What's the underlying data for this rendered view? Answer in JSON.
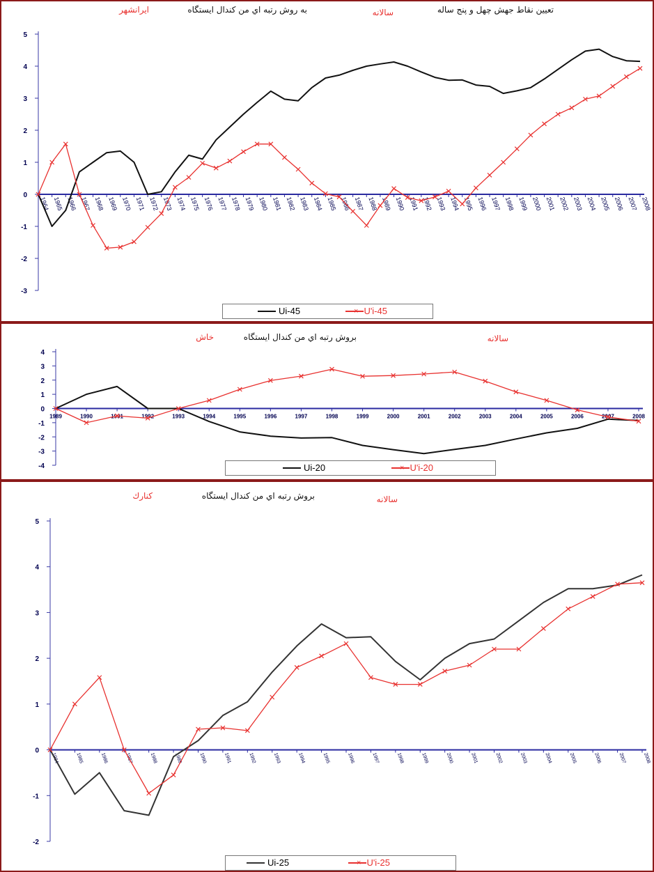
{
  "chart_data": [
    {
      "type": "line",
      "title_parts": [
        "تعیین نقاط جهش چهل و پنج ساله",
        "سالانه",
        "به روش رتبه اي من كندال ايستگاه",
        "ايرانشهر"
      ],
      "categories": [
        "1964",
        "1965",
        "1966",
        "1967",
        "1968",
        "1969",
        "1970",
        "1971",
        "1972",
        "1973",
        "1974",
        "1975",
        "1976",
        "1977",
        "1978",
        "1979",
        "1980",
        "1981",
        "1982",
        "1983",
        "1984",
        "1985",
        "1986",
        "1987",
        "1988",
        "1989",
        "1990",
        "1991",
        "1992",
        "1993",
        "1994",
        "1995",
        "1996",
        "1997",
        "1998",
        "1999",
        "2000",
        "2001",
        "2002",
        "2003",
        "2004",
        "2005",
        "2006",
        "2007",
        "2008"
      ],
      "ylim": [
        -3,
        5
      ],
      "yticks": [
        -3,
        -2,
        -1,
        0,
        1,
        2,
        3,
        4,
        5
      ],
      "series": [
        {
          "name": "Ui-45",
          "color": "#111111",
          "marker": "none",
          "values": [
            0,
            -1,
            -0.5,
            0.7,
            1.0,
            1.3,
            1.35,
            1.0,
            0,
            0.08,
            0.7,
            1.22,
            1.1,
            1.7,
            2.1,
            2.5,
            2.87,
            3.22,
            2.97,
            2.92,
            3.33,
            3.63,
            3.72,
            3.87,
            4.0,
            4.07,
            4.13,
            4.0,
            3.82,
            3.65,
            3.56,
            3.57,
            3.41,
            3.37,
            3.15,
            3.23,
            3.33,
            3.6,
            3.9,
            4.2,
            4.47,
            4.53,
            4.3,
            4.17,
            4.15
          ]
        },
        {
          "name": "U'i-45",
          "color": "#e8312f",
          "marker": "x",
          "values": [
            0,
            1.0,
            1.57,
            0,
            -0.97,
            -1.68,
            -1.65,
            -1.48,
            -1.03,
            -0.6,
            0.22,
            0.53,
            0.97,
            0.82,
            1.04,
            1.33,
            1.57,
            1.57,
            1.15,
            0.78,
            0.35,
            0.02,
            -0.08,
            -0.53,
            -0.97,
            -0.35,
            0.18,
            -0.1,
            -0.2,
            -0.08,
            0.1,
            -0.3,
            0.2,
            0.6,
            1.0,
            1.42,
            1.85,
            2.2,
            2.5,
            2.7,
            2.97,
            3.07,
            3.37,
            3.67,
            3.93
          ]
        }
      ],
      "legend": "bottom"
    },
    {
      "type": "line",
      "title_parts": [
        "سالانه",
        "بروش رتبه اي من كندال ايستگاه",
        "خاش"
      ],
      "categories": [
        "1989",
        "1990",
        "1991",
        "1992",
        "1993",
        "1994",
        "1995",
        "1996",
        "1997",
        "1998",
        "1999",
        "2000",
        "2001",
        "2002",
        "2003",
        "2004",
        "2005",
        "2006",
        "2007",
        "2008"
      ],
      "ylim": [
        -4,
        4
      ],
      "yticks": [
        -4,
        -3,
        -2,
        -1,
        0,
        1,
        2,
        3,
        4
      ],
      "series": [
        {
          "name": "Ui-20",
          "color": "#111111",
          "marker": "none",
          "values": [
            0,
            1.0,
            1.55,
            0,
            0,
            -0.92,
            -1.65,
            -1.95,
            -2.08,
            -2.05,
            -2.6,
            -2.9,
            -3.18,
            -2.88,
            -2.6,
            -2.15,
            -1.72,
            -1.4,
            -0.75,
            -0.85
          ]
        },
        {
          "name": "U'i-20",
          "color": "#e8312f",
          "marker": "x",
          "values": [
            0,
            -1.0,
            -0.52,
            -0.68,
            0,
            0.57,
            1.35,
            1.97,
            2.28,
            2.77,
            2.27,
            2.32,
            2.43,
            2.57,
            1.93,
            1.17,
            0.57,
            -0.1,
            -0.6,
            -0.9
          ]
        }
      ],
      "legend": "bottom"
    },
    {
      "type": "line",
      "title_parts": [
        "سالانه",
        "بروش رتبه اي من كندال ايستگاه",
        "كنارك"
      ],
      "categories": [
        "1984",
        "1985",
        "1986",
        "1987",
        "1988",
        "1989",
        "1990",
        "1991",
        "1992",
        "1993",
        "1994",
        "1995",
        "1996",
        "1997",
        "1998",
        "1999",
        "2000",
        "2001",
        "2002",
        "2003",
        "2004",
        "2005",
        "2006",
        "2007",
        "2008"
      ],
      "ylim": [
        -2,
        5
      ],
      "yticks": [
        -2,
        -1,
        0,
        1,
        2,
        3,
        4,
        5
      ],
      "series": [
        {
          "name": "Ui-25",
          "color": "#333333",
          "marker": "none",
          "values": [
            0,
            -0.97,
            -0.5,
            -1.33,
            -1.43,
            -0.15,
            0.2,
            0.75,
            1.05,
            1.7,
            2.27,
            2.75,
            2.45,
            2.47,
            1.93,
            1.53,
            2.0,
            2.32,
            2.42,
            2.82,
            3.22,
            3.52,
            3.52,
            3.6,
            3.82
          ]
        },
        {
          "name": "U'i-25",
          "color": "#e8312f",
          "marker": "x",
          "values": [
            0,
            1.0,
            1.58,
            0,
            -0.95,
            -0.55,
            0.45,
            0.48,
            0.42,
            1.15,
            1.8,
            2.05,
            2.32,
            1.58,
            1.43,
            1.43,
            1.72,
            1.85,
            2.2,
            2.2,
            2.65,
            3.08,
            3.35,
            3.62,
            3.65
          ]
        }
      ],
      "legend": "bottom"
    }
  ]
}
